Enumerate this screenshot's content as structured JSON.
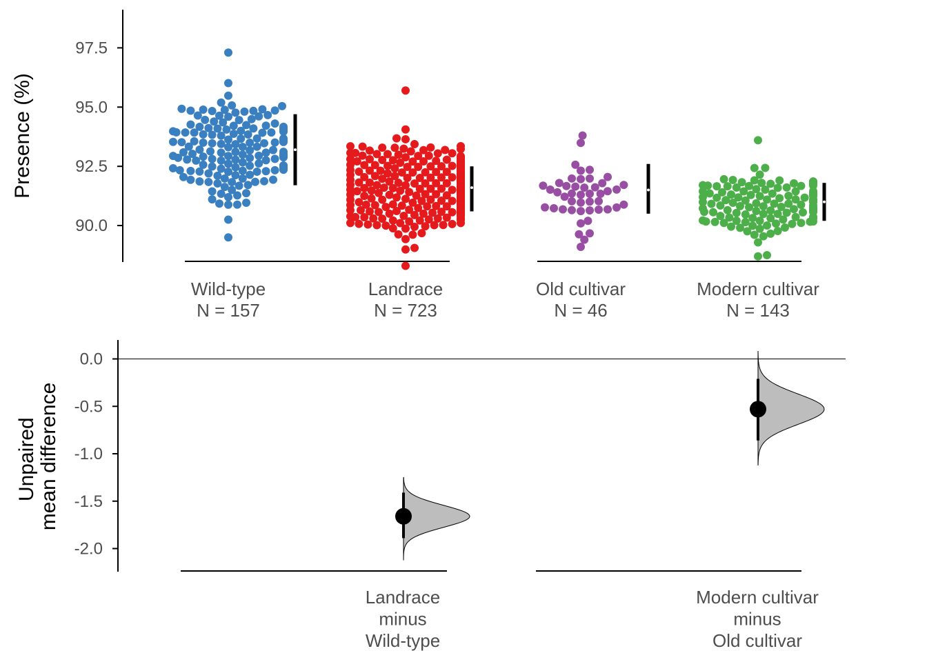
{
  "chart_data": [
    {
      "type": "scatter",
      "subtype": "swarm",
      "ylabel": "Presence (%)",
      "ylim": [
        88.0,
        97.8
      ],
      "yticks": [
        "90.0",
        "92.5",
        "95.0",
        "97.5"
      ],
      "groups": [
        {
          "name": "Wild-type",
          "n_label": "N = 157",
          "n": 157,
          "color": "#3A7FC0",
          "mean": 93.2,
          "sd": 1.5,
          "min": 89.5,
          "max": 97.3,
          "ci": [
            91.7,
            94.7
          ]
        },
        {
          "name": "Landrace",
          "n_label": "N = 723",
          "n": 723,
          "color": "#E41A1C",
          "mean": 91.6,
          "sd": 1.0,
          "min": 88.3,
          "max": 95.7,
          "ci": [
            90.6,
            92.5
          ]
        },
        {
          "name": "Old cultivar",
          "n_label": "N = 46",
          "n": 46,
          "color": "#984EA3",
          "mean": 91.5,
          "sd": 1.1,
          "min": 89.1,
          "max": 93.8,
          "ci": [
            90.5,
            92.6
          ]
        },
        {
          "name": "Modern cultivar",
          "n_label": "N = 143",
          "n": 143,
          "color": "#4DAF4A",
          "mean": 91.0,
          "sd": 0.8,
          "min": 88.7,
          "max": 93.6,
          "ci": [
            90.2,
            91.8
          ]
        }
      ],
      "grid": false,
      "legend": "none"
    },
    {
      "type": "scatter",
      "subtype": "estimation",
      "ylabel": [
        "Unpaired",
        "mean difference"
      ],
      "ylim": [
        -2.24,
        0.18
      ],
      "yticks": [
        "0.0",
        "-0.5",
        "-1.0",
        "-1.5",
        "-2.0"
      ],
      "reference_line": 0.0,
      "comparisons": [
        {
          "label": [
            "Landrace",
            "minus",
            "Wild-type"
          ],
          "mean_diff": -1.66,
          "ci": [
            -1.41,
            -1.89
          ],
          "dist_range": [
            -1.25,
            -2.12
          ],
          "color": "#bdbdbd"
        },
        {
          "label": [
            "Modern cultivar",
            "minus",
            "Old cultivar"
          ],
          "mean_diff": -0.53,
          "ci": [
            -0.21,
            -0.86
          ],
          "dist_range": [
            0.08,
            -1.12
          ],
          "color": "#bdbdbd"
        }
      ],
      "grid": false,
      "legend": "none"
    }
  ]
}
